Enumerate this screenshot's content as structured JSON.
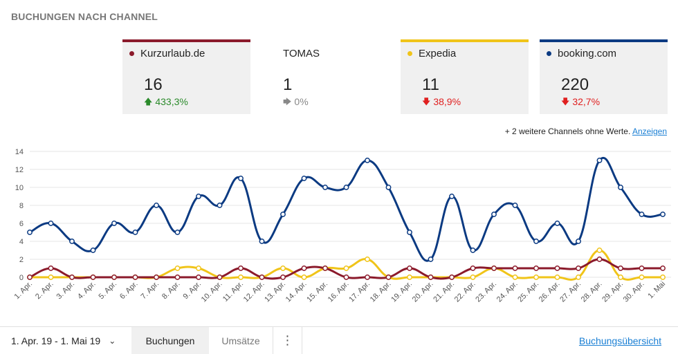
{
  "title": "BUCHUNGEN NACH CHANNEL",
  "cards": [
    {
      "name": "Kurzurlaub.de",
      "value": "16",
      "change": "433,3%",
      "direction": "up",
      "color": "#8b1a2b",
      "has_dot": true
    },
    {
      "name": "TOMAS",
      "value": "1",
      "change": "0%",
      "direction": "neutral",
      "color": "",
      "has_dot": false
    },
    {
      "name": "Expedia",
      "value": "11",
      "change": "38,9%",
      "direction": "down",
      "color": "#f0c419",
      "has_dot": true
    },
    {
      "name": "booking.com",
      "value": "220",
      "change": "32,7%",
      "direction": "down",
      "color": "#0b3a82",
      "has_dot": true
    }
  ],
  "more_channels": {
    "text": "+ 2 weitere Channels ohne Werte.",
    "link": "Anzeigen"
  },
  "chart_data": {
    "type": "line",
    "x": [
      "1. Apr.",
      "2. Apr.",
      "3. Apr.",
      "4. Apr.",
      "5. Apr.",
      "6. Apr.",
      "7. Apr.",
      "8. Apr.",
      "9. Apr.",
      "10. Apr.",
      "11. Apr.",
      "12. Apr.",
      "13. Apr.",
      "14. Apr.",
      "15. Apr.",
      "16. Apr.",
      "17. Apr.",
      "18. Apr.",
      "19. Apr.",
      "20. Apr.",
      "21. Apr.",
      "22. Apr.",
      "23. Apr.",
      "24. Apr.",
      "25. Apr.",
      "26. Apr.",
      "27. Apr.",
      "28. Apr.",
      "29. Apr.",
      "30. Apr.",
      "1. Mai"
    ],
    "series": [
      {
        "name": "booking.com",
        "color": "#0b3a82",
        "values": [
          5,
          6,
          4,
          3,
          6,
          5,
          8,
          5,
          9,
          8,
          11,
          4,
          7,
          11,
          10,
          10,
          13,
          10,
          5,
          2,
          9,
          3,
          7,
          8,
          4,
          6,
          4,
          13,
          10,
          7,
          7
        ]
      },
      {
        "name": "Expedia",
        "color": "#f0c419",
        "values": [
          0,
          0,
          0,
          0,
          0,
          0,
          0,
          1,
          1,
          0,
          0,
          0,
          1,
          0,
          1,
          1,
          2,
          0,
          0,
          0,
          0,
          0,
          1,
          0,
          0,
          0,
          0,
          3,
          0,
          0,
          0
        ]
      },
      {
        "name": "Kurzurlaub.de",
        "color": "#8b1a2b",
        "values": [
          0,
          1,
          0,
          0,
          0,
          0,
          0,
          0,
          0,
          0,
          1,
          0,
          0,
          1,
          1,
          0,
          0,
          0,
          1,
          0,
          0,
          1,
          1,
          1,
          1,
          1,
          1,
          2,
          1,
          1,
          1
        ]
      }
    ],
    "yticks": [
      0,
      2,
      4,
      6,
      8,
      10,
      12,
      14
    ],
    "ylim": [
      0,
      14
    ],
    "grid": true
  },
  "footer": {
    "date_range": "1. Apr. 19 - 1. Mai 19",
    "tabs": [
      "Buchungen",
      "Umsätze"
    ],
    "overview_link": "Buchungsübersicht"
  }
}
